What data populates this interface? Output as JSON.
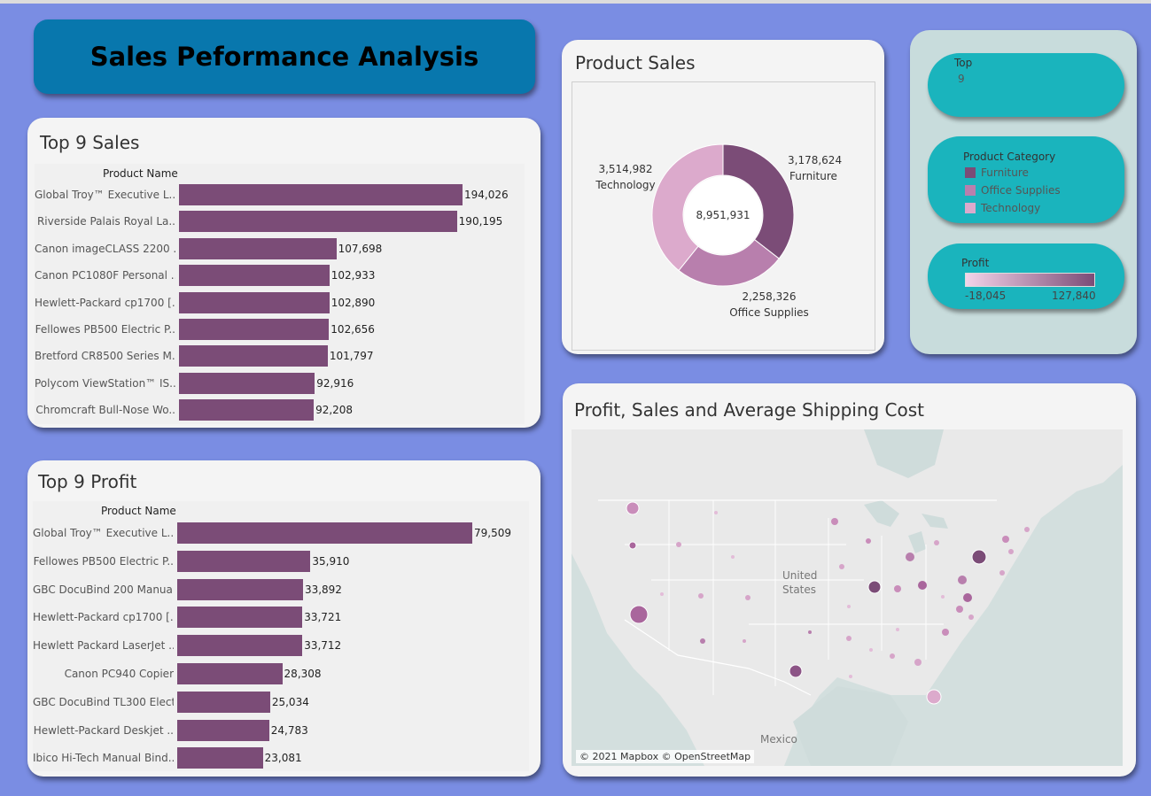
{
  "dashboard": {
    "title": "Sales Peformance Analysis"
  },
  "top_sales": {
    "title": "Top 9 Sales",
    "column_header": "Product Name",
    "chart_data": {
      "type": "bar",
      "categories": [
        "Global Troy™ Executive L..",
        "Riverside Palais Royal La..",
        "Canon imageCLASS 2200 ..",
        "Canon PC1080F Personal ..",
        "Hewlett-Packard cp1700 [..",
        "Fellowes PB500 Electric P..",
        "Bretford CR8500 Series M..",
        "Polycom ViewStation™ IS..",
        "Chromcraft Bull-Nose Wo.."
      ],
      "values": [
        194026,
        190195,
        107698,
        102933,
        102890,
        102656,
        101797,
        92916,
        92208
      ],
      "labels": [
        "194,026",
        "190,195",
        "107,698",
        "102,933",
        "102,890",
        "102,656",
        "101,797",
        "92,916",
        "92,208"
      ],
      "color": "#7b4c77"
    }
  },
  "top_profit": {
    "title": "Top 9 Profit",
    "column_header": "Product Name",
    "chart_data": {
      "type": "bar",
      "categories": [
        "Global Troy™ Executive L..",
        "Fellowes PB500 Electric P..",
        "GBC DocuBind 200 Manua..",
        "Hewlett-Packard cp1700 [..",
        "Hewlett Packard LaserJet ..",
        "Canon PC940 Copier",
        "GBC DocuBind TL300 Elect..",
        "Hewlett-Packard Deskjet ..",
        "Ibico Hi-Tech Manual Bind.."
      ],
      "values": [
        79509,
        35910,
        33892,
        33721,
        33712,
        28308,
        25034,
        24783,
        23081
      ],
      "labels": [
        "79,509",
        "35,910",
        "33,892",
        "33,721",
        "33,712",
        "28,308",
        "25,034",
        "24,783",
        "23,081"
      ],
      "color": "#7b4c77"
    }
  },
  "product_sales": {
    "title": "Product Sales",
    "center_total": "8,951,931",
    "chart_data": {
      "type": "pie",
      "categories": [
        "Furniture",
        "Office Supplies",
        "Technology"
      ],
      "values": [
        3178624,
        2258326,
        3514982
      ],
      "labels": [
        "3,178,624",
        "2,258,326",
        "3,514,982"
      ],
      "colors": [
        "#7b4c77",
        "#b87fad",
        "#dcaacc"
      ]
    }
  },
  "filters": {
    "top": {
      "title": "Top",
      "value": "9"
    },
    "category_legend": {
      "title": "Product Category",
      "items": [
        {
          "label": "Furniture",
          "color": "#7b4c77"
        },
        {
          "label": "Office Supplies",
          "color": "#b87fad"
        },
        {
          "label": "Technology",
          "color": "#dcaacc"
        }
      ]
    },
    "profit_legend": {
      "title": "Profit",
      "min_label": "-18,045",
      "max_label": "127,840",
      "color_low": "#f3d3e9",
      "color_high": "#7b4c77"
    }
  },
  "map": {
    "title": "Profit, Sales and Average Shipping Cost",
    "label_us_1": "United",
    "label_us_2": "States",
    "label_mexico": "Mexico",
    "attribution": "© 2021 Mapbox © OpenStreetMap"
  }
}
